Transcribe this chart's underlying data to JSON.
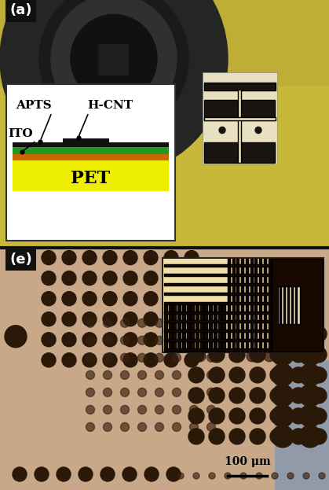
{
  "fig_width": 4.19,
  "fig_height": 6.23,
  "dpi": 100,
  "panel_a_label": "(a)",
  "panel_e_label": "(e)",
  "scale_bar_text": "100 μm",
  "bg_top": "#c8b83a",
  "bg_bottom": "#c8a888",
  "circle_dark": "#282828",
  "circle_mid": "#383838",
  "circle_hole": "#1a1a1a",
  "inset_a_bg": "#ffffff",
  "inset_a_border": "#333333",
  "layer_cnt": "#111111",
  "layer_green": "#229922",
  "layer_orange": "#cc6600",
  "layer_yellow": "#eeee00",
  "pet_text_color": "#000000",
  "annotation_color": "#000000",
  "shield_bg": "#e8e0c0",
  "shield_dark": "#1a1510",
  "dot_dark": "#2a1808",
  "dot_mid": "#3a2010",
  "dot_light": "#503020",
  "inset_e_bg1": "#f5e8c0",
  "inset_e_bg2": "#f0dda0",
  "inset_e_dark": "#180800",
  "inset_e_stripe_bg": "#c89860",
  "right_shadow": "#8898b8",
  "label_bg": "#111111",
  "label_color": "#ffffff",
  "label_fontsize": 13,
  "annotation_fontsize": 11,
  "pet_fontsize": 16
}
